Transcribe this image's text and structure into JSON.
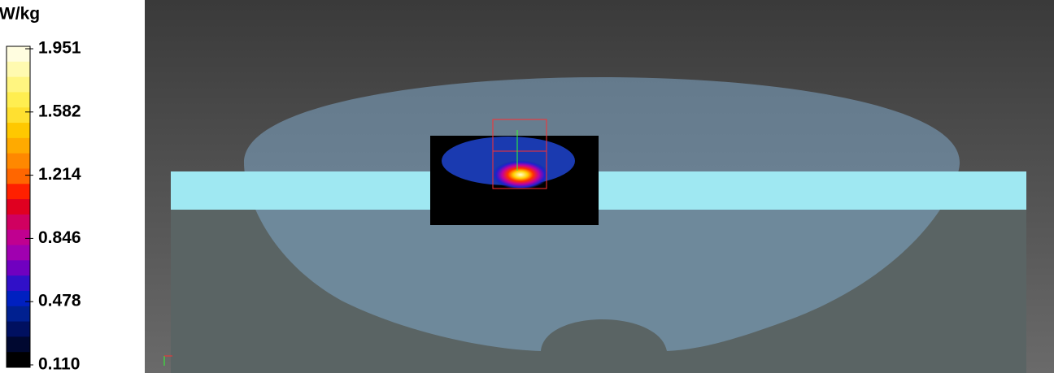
{
  "colorbar": {
    "unit": "W/kg",
    "labels": [
      "1.951",
      "1.582",
      "1.214",
      "0.846",
      "0.478",
      "0.110"
    ],
    "colors": [
      "#fffde0",
      "#fffab0",
      "#fff580",
      "#ffee50",
      "#ffe030",
      "#ffc800",
      "#ffaa00",
      "#ff8800",
      "#ff6600",
      "#ff2000",
      "#e00020",
      "#d00060",
      "#c00090",
      "#a000b0",
      "#7000c0",
      "#3010c8",
      "#0020c0",
      "#002090",
      "#001060",
      "#000830",
      "#000000"
    ]
  }
}
